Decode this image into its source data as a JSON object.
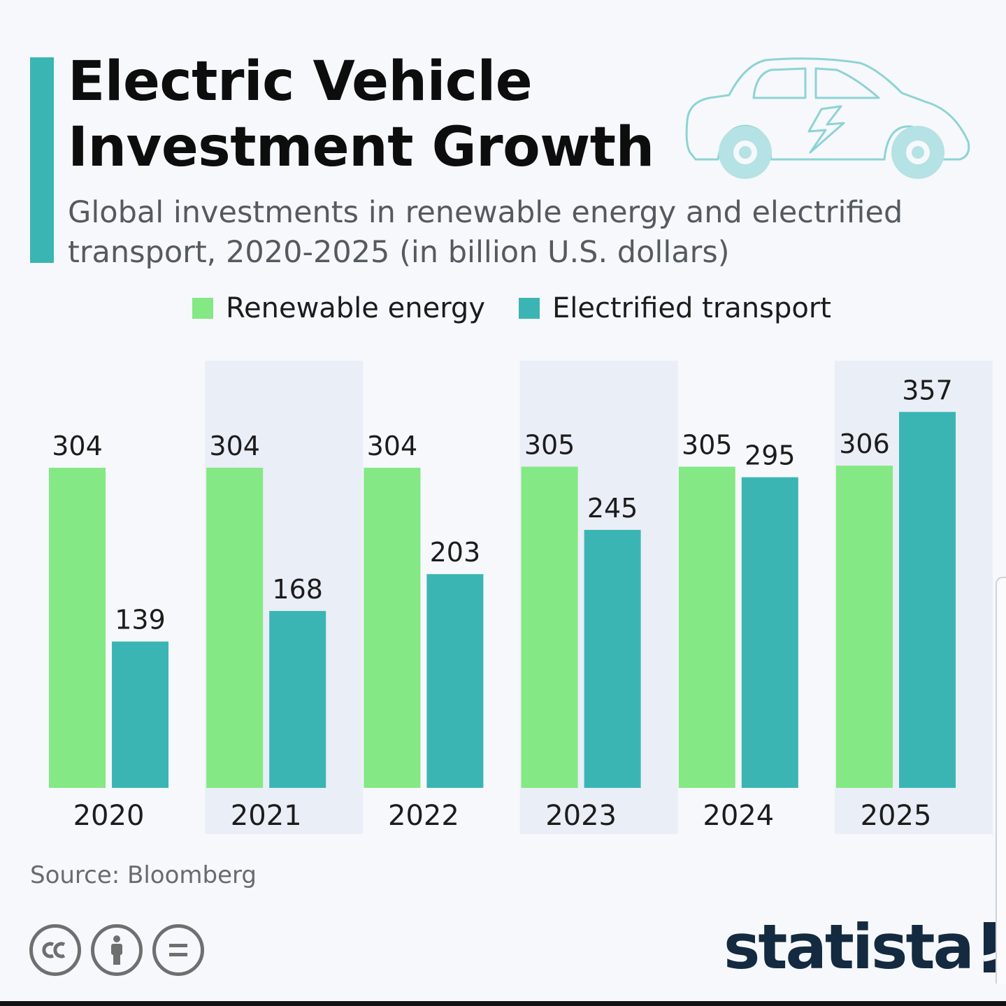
{
  "header": {
    "title_line1": "Electric Vehicle",
    "title_line2": "Investment Growth",
    "subtitle": "Global investments in renewable energy and electrified transport, 2020-2025 (in billion U.S. dollars)"
  },
  "colors": {
    "accent": "#3bb5b4",
    "renewable": "#84e884",
    "transport": "#3bb5b4",
    "band": "#eaeef6"
  },
  "chart_data": {
    "type": "bar",
    "categories": [
      "2020",
      "2021",
      "2022",
      "2023",
      "2024",
      "2025"
    ],
    "series": [
      {
        "name": "Renewable energy",
        "values": [
          304,
          304,
          304,
          305,
          305,
          306
        ]
      },
      {
        "name": "Electrified transport",
        "values": [
          139,
          168,
          203,
          245,
          295,
          357
        ]
      }
    ],
    "title": "Electric Vehicle Investment Growth",
    "subtitle": "Global investments in renewable energy and electrified transport, 2020-2025 (in billion U.S. dollars)",
    "xlabel": "",
    "ylabel": "",
    "ylim": [
      0,
      400
    ],
    "grid": false,
    "legend_position": "top-center",
    "data_labels": true
  },
  "footer": {
    "source": "Source: Bloomberg",
    "brand": "statista",
    "licence_icons": [
      "creative-commons-icon",
      "attribution-icon",
      "no-derivatives-icon"
    ]
  }
}
